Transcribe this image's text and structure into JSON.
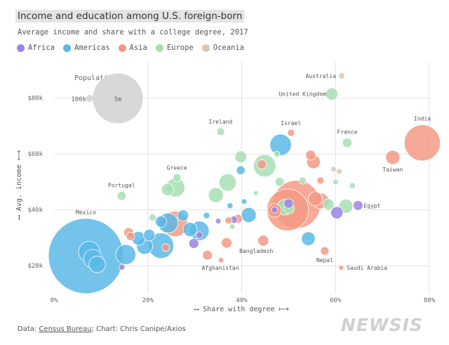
{
  "header": {
    "title": "Income and education among U.S. foreign-born",
    "subtitle": "Average income and share with a college degree, 2017"
  },
  "legend": [
    {
      "name": "Africa",
      "color": "#9b84e0"
    },
    {
      "name": "Americas",
      "color": "#5ab8e6"
    },
    {
      "name": "Asia",
      "color": "#f39a84"
    },
    {
      "name": "Europe",
      "color": "#a6dfb4"
    },
    {
      "name": "Oceania",
      "color": "#d9c6b6"
    }
  ],
  "footer": {
    "data_prefix": "Data: ",
    "source": "Census Bureau",
    "credit": "; Chart: Chris Canipe/Axios"
  },
  "watermark": "NEWSIS",
  "chart_data": {
    "type": "scatter",
    "title": "Income and education among U.S. foreign-born",
    "subtitle": "Average income and share with a college degree, 2017",
    "xlabel": "⟷ Share with degree ⟼",
    "ylabel": "⟷ Avg. income ⟼",
    "xlim": [
      0,
      80
    ],
    "ylim": [
      10000,
      93000
    ],
    "x_ticks": [
      0,
      20,
      40,
      60,
      80
    ],
    "x_tick_labels": [
      "0%",
      "20%",
      "40%",
      "60%",
      "80%"
    ],
    "y_ticks": [
      20000,
      40000,
      60000,
      80000
    ],
    "y_tick_labels": [
      "$20k",
      "$40k",
      "$60k",
      "$80k"
    ],
    "size_legend": {
      "title": "Population",
      "small_label": "100k",
      "small_value": 100000,
      "large_label": "5m",
      "large_value": 5000000
    },
    "series": [
      {
        "name": "Africa",
        "points": [
          {
            "x": 64.8,
            "y": 41600,
            "pop": 190000,
            "label": "Egypt"
          },
          {
            "x": 60.3,
            "y": 39000,
            "pop": 300000
          },
          {
            "x": 50.0,
            "y": 42300,
            "pop": 180000
          },
          {
            "x": 38.3,
            "y": 36500,
            "pop": 110000
          },
          {
            "x": 35.0,
            "y": 36000,
            "pop": 60000
          },
          {
            "x": 29.8,
            "y": 28000,
            "pop": 200000
          },
          {
            "x": 31.0,
            "y": 31000,
            "pop": 90000
          },
          {
            "x": 14.5,
            "y": 19500,
            "pop": 70000
          },
          {
            "x": 47.0,
            "y": 40000,
            "pop": 80000
          }
        ]
      },
      {
        "name": "Americas",
        "points": [
          {
            "x": 6.8,
            "y": 23500,
            "pop": 11300000,
            "label": "Mexico"
          },
          {
            "x": 7.5,
            "y": 25000,
            "pop": 900000
          },
          {
            "x": 8.3,
            "y": 22500,
            "pop": 700000
          },
          {
            "x": 9.2,
            "y": 20500,
            "pop": 550000
          },
          {
            "x": 15.3,
            "y": 24000,
            "pop": 800000
          },
          {
            "x": 19.3,
            "y": 27000,
            "pop": 520000
          },
          {
            "x": 22.8,
            "y": 27200,
            "pop": 1300000
          },
          {
            "x": 18.0,
            "y": 29800,
            "pop": 380000
          },
          {
            "x": 20.3,
            "y": 31000,
            "pop": 260000
          },
          {
            "x": 22.8,
            "y": 35800,
            "pop": 260000
          },
          {
            "x": 24.3,
            "y": 35300,
            "pop": 800000
          },
          {
            "x": 27.5,
            "y": 38000,
            "pop": 250000
          },
          {
            "x": 29.0,
            "y": 33000,
            "pop": 400000
          },
          {
            "x": 31.0,
            "y": 32500,
            "pop": 750000
          },
          {
            "x": 32.5,
            "y": 38000,
            "pop": 80000
          },
          {
            "x": 41.5,
            "y": 38200,
            "pop": 450000
          },
          {
            "x": 48.3,
            "y": 63300,
            "pop": 920000
          },
          {
            "x": 54.2,
            "y": 29700,
            "pop": 380000
          },
          {
            "x": 39.8,
            "y": 54200,
            "pop": 150000
          },
          {
            "x": 37.5,
            "y": 41500,
            "pop": 70000
          },
          {
            "x": 40.5,
            "y": 43000,
            "pop": 60000
          }
        ]
      },
      {
        "name": "Asia",
        "points": [
          {
            "x": 78.5,
            "y": 64000,
            "pop": 2600000,
            "label": "India"
          },
          {
            "x": 72.2,
            "y": 58800,
            "pop": 400000,
            "label": "Taiwan"
          },
          {
            "x": 50.5,
            "y": 67600,
            "pop": 100000,
            "label": "Israel"
          },
          {
            "x": 44.6,
            "y": 29000,
            "pop": 240000,
            "label": "Bangladesh"
          },
          {
            "x": 57.7,
            "y": 25300,
            "pop": 140000,
            "label": "Nepal"
          },
          {
            "x": 61.2,
            "y": 19300,
            "pop": 50000,
            "label": "Saudi Arabia"
          },
          {
            "x": 35.6,
            "y": 22000,
            "pop": 60000,
            "label": "Afghanistan"
          },
          {
            "x": 51.7,
            "y": 42000,
            "pop": 4600000
          },
          {
            "x": 49.8,
            "y": 40000,
            "pop": 3500000
          },
          {
            "x": 55.7,
            "y": 44000,
            "pop": 400000
          },
          {
            "x": 56.9,
            "y": 43200,
            "pop": 500000
          },
          {
            "x": 47.0,
            "y": 39800,
            "pop": 370000
          },
          {
            "x": 54.7,
            "y": 59600,
            "pop": 200000
          },
          {
            "x": 55.3,
            "y": 57200,
            "pop": 370000
          },
          {
            "x": 25.8,
            "y": 35000,
            "pop": 1300000
          },
          {
            "x": 23.8,
            "y": 26500,
            "pop": 120000
          },
          {
            "x": 36.8,
            "y": 28200,
            "pop": 220000
          },
          {
            "x": 32.7,
            "y": 23800,
            "pop": 190000
          },
          {
            "x": 15.9,
            "y": 31900,
            "pop": 190000
          },
          {
            "x": 16.3,
            "y": 30500,
            "pop": 140000
          },
          {
            "x": 37.2,
            "y": 36200,
            "pop": 100000
          },
          {
            "x": 39.2,
            "y": 36800,
            "pop": 160000
          },
          {
            "x": 44.3,
            "y": 56300,
            "pop": 180000
          },
          {
            "x": 56.8,
            "y": 50500,
            "pop": 100000
          }
        ]
      },
      {
        "name": "Europe",
        "points": [
          {
            "x": 59.2,
            "y": 81500,
            "pop": 300000,
            "label": "United Kingdom"
          },
          {
            "x": 62.5,
            "y": 64000,
            "pop": 180000,
            "label": "France"
          },
          {
            "x": 35.5,
            "y": 68000,
            "pop": 120000,
            "label": "Ireland"
          },
          {
            "x": 26.2,
            "y": 51500,
            "pop": 130000,
            "label": "Greece"
          },
          {
            "x": 14.4,
            "y": 45000,
            "pop": 160000,
            "label": "Portugal"
          },
          {
            "x": 25.9,
            "y": 48000,
            "pop": 700000
          },
          {
            "x": 24.2,
            "y": 47300,
            "pop": 300000
          },
          {
            "x": 37.0,
            "y": 49800,
            "pop": 600000
          },
          {
            "x": 34.5,
            "y": 45300,
            "pop": 450000
          },
          {
            "x": 44.9,
            "y": 55800,
            "pop": 1000000
          },
          {
            "x": 39.8,
            "y": 59000,
            "pop": 280000
          },
          {
            "x": 48.1,
            "y": 50000,
            "pop": 160000
          },
          {
            "x": 47.5,
            "y": 60000,
            "pop": 70000
          },
          {
            "x": 53.0,
            "y": 50500,
            "pop": 100000
          },
          {
            "x": 62.2,
            "y": 41300,
            "pop": 400000
          },
          {
            "x": 58.5,
            "y": 42000,
            "pop": 250000
          },
          {
            "x": 49.2,
            "y": 41000,
            "pop": 500000
          },
          {
            "x": 50.1,
            "y": 40500,
            "pop": 220000
          },
          {
            "x": 21.0,
            "y": 37300,
            "pop": 100000
          },
          {
            "x": 63.6,
            "y": 48700,
            "pop": 70000
          },
          {
            "x": 60.0,
            "y": 50000,
            "pop": 60000
          },
          {
            "x": 43.0,
            "y": 46000,
            "pop": 50000
          },
          {
            "x": 38.0,
            "y": 34000,
            "pop": 60000
          }
        ]
      },
      {
        "name": "Oceania",
        "points": [
          {
            "x": 61.3,
            "y": 88000,
            "pop": 70000,
            "label": "Australia"
          },
          {
            "x": 60.8,
            "y": 53800,
            "pop": 60000
          },
          {
            "x": 59.6,
            "y": 54600,
            "pop": 60000
          }
        ]
      }
    ]
  }
}
